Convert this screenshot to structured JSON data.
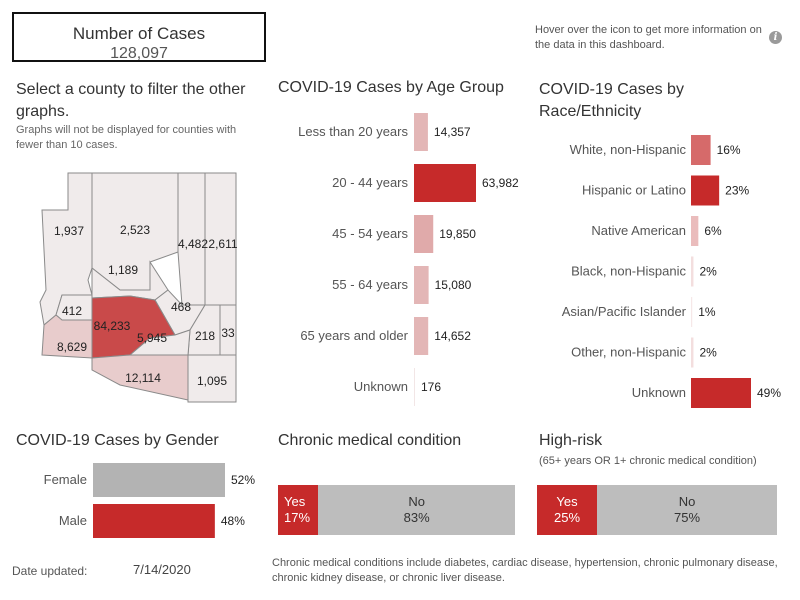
{
  "header": {
    "number_title": "Number of Cases",
    "number_value": "128,097",
    "hover_note": "Hover over the icon to get more information on the data in this dashboard.",
    "info_icon": "info-icon"
  },
  "map_panel": {
    "title": "Select a county to filter the other graphs.",
    "note": "Graphs will not be displayed for counties with fewer than 10 cases.",
    "county_labels": [
      "1,937",
      "2,523",
      "4,482",
      "2,611",
      "1,189",
      "412",
      "84,233",
      "468",
      "218",
      "33",
      "8,629",
      "5,945",
      "12,114",
      "1,095"
    ],
    "colors": {
      "high": "#c94a4a",
      "mid": "#e0b9b9",
      "low": "#f0ebeb",
      "border": "#888888"
    }
  },
  "age_panel": {
    "title": "COVID-19 Cases by Age Group"
  },
  "race_panel": {
    "title_line1": "COVID-19 Cases by",
    "title_line2": "Race/Ethnicity"
  },
  "gender_panel": {
    "title": "COVID-19 Cases by Gender"
  },
  "chronic_panel": {
    "title": "Chronic medical condition",
    "yes_label": "Yes",
    "yes_value": "17%",
    "no_label": "No",
    "no_value": "83%",
    "footnote": "Chronic medical conditions include diabetes, cardiac disease, hypertension, chronic pulmonary disease, chronic kidney disease, or chronic liver disease."
  },
  "highrisk_panel": {
    "title": "High-risk",
    "subtitle": "(65+ years OR 1+ chronic medical condition)",
    "yes_label": "Yes",
    "yes_value": "25%",
    "no_label": "No",
    "no_value": "75%"
  },
  "footer": {
    "date_label": "Date updated:",
    "date_value": "7/14/2020"
  },
  "chart_data": [
    {
      "type": "bar",
      "orientation": "horizontal",
      "title": "COVID-19 Cases by Age Group",
      "categories": [
        "Less than 20 years",
        "20 -  44 years",
        "45 - 54 years",
        "55 - 64 years",
        "65 years and older",
        "Unknown"
      ],
      "values": [
        14357,
        63982,
        19850,
        15080,
        14652,
        176
      ],
      "value_labels": [
        "14,357",
        "63,982",
        "19,850",
        "15,080",
        "14,652",
        "176"
      ],
      "colors": [
        "#e3b6b6",
        "#c62a2a",
        "#e0aaaa",
        "#e3b6b6",
        "#e3b6b6",
        "#f2e6e6"
      ]
    },
    {
      "type": "bar",
      "orientation": "horizontal",
      "title": "COVID-19 Cases by Race/Ethnicity",
      "categories": [
        "White, non-Hispanic",
        "Hispanic or Latino",
        "Native American",
        "Black, non-Hispanic",
        "Asian/Pacific Islander",
        "Other, non-Hispanic",
        "Unknown"
      ],
      "values": [
        16,
        23,
        6,
        2,
        1,
        2,
        49
      ],
      "value_labels": [
        "16%",
        "23%",
        "6%",
        "2%",
        "1%",
        "2%",
        "49%"
      ],
      "colors": [
        "#d66a6a",
        "#c62a2a",
        "#eabcbc",
        "#f3dede",
        "#f6e8e8",
        "#f3dede",
        "#c62a2a"
      ]
    },
    {
      "type": "bar",
      "orientation": "horizontal",
      "title": "COVID-19 Cases by Gender",
      "categories": [
        "Female",
        "Male"
      ],
      "values": [
        52,
        48
      ],
      "value_labels": [
        "52%",
        "48%"
      ],
      "colors": [
        "#b3b3b3",
        "#c62a2a"
      ]
    }
  ]
}
